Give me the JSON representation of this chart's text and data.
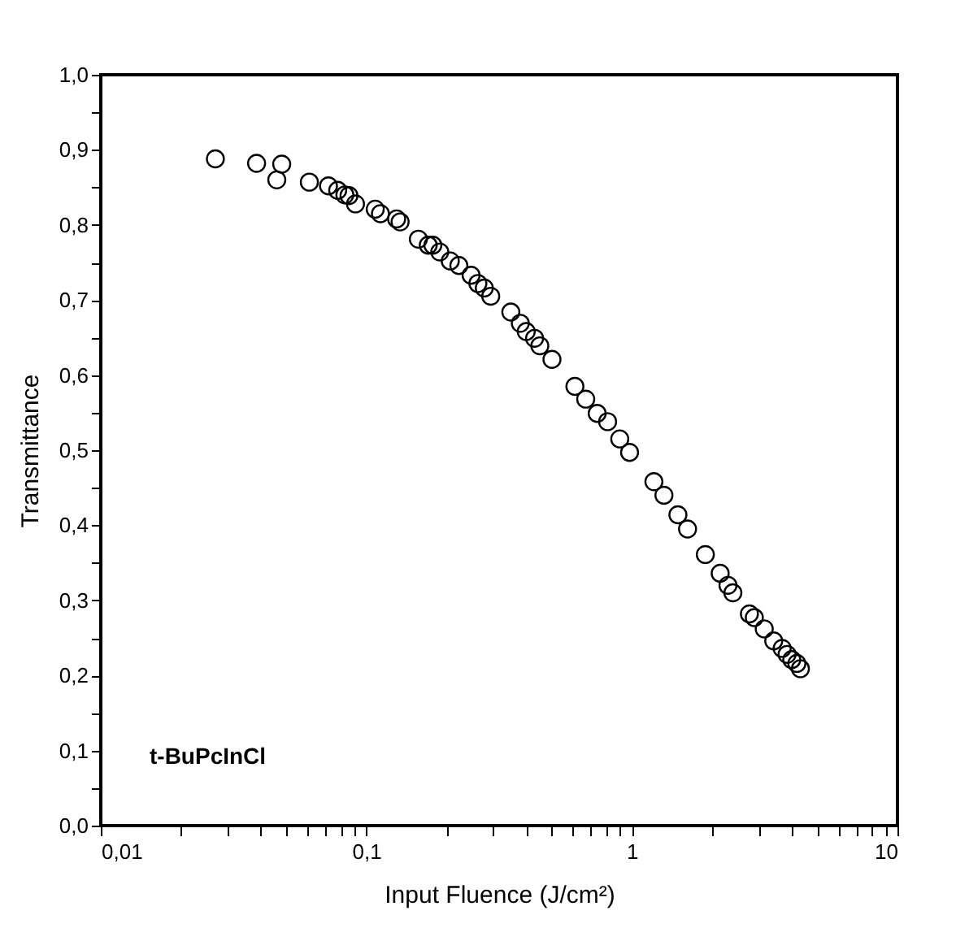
{
  "chart_data": {
    "type": "scatter",
    "xlabel": "Input Fluence (J/cm²)",
    "ylabel": "Transmittance",
    "log": "x",
    "marker": "circle",
    "grid": false,
    "legend": false,
    "annotations": [
      "t-BuPcInCl"
    ],
    "xlim": [
      0.01,
      10
    ],
    "ylim": [
      0,
      1
    ],
    "xticks": [
      {
        "value": 0.01,
        "label": "0,01"
      },
      {
        "value": 0.02,
        "label": null
      },
      {
        "value": 0.03,
        "label": null
      },
      {
        "value": 0.04,
        "label": null
      },
      {
        "value": 0.05,
        "label": null
      },
      {
        "value": 0.06,
        "label": null
      },
      {
        "value": 0.07,
        "label": null
      },
      {
        "value": 0.08,
        "label": null
      },
      {
        "value": 0.09,
        "label": null
      },
      {
        "value": 0.1,
        "label": "0,1"
      },
      {
        "value": 0.2,
        "label": null
      },
      {
        "value": 0.3,
        "label": null
      },
      {
        "value": 0.4,
        "label": null
      },
      {
        "value": 0.5,
        "label": null
      },
      {
        "value": 0.6,
        "label": null
      },
      {
        "value": 0.7,
        "label": null
      },
      {
        "value": 0.8,
        "label": null
      },
      {
        "value": 0.9,
        "label": null
      },
      1,
      {
        "value": 2,
        "label": null
      },
      {
        "value": 3,
        "label": null
      },
      {
        "value": 4,
        "label": null
      },
      {
        "value": 5,
        "label": null
      },
      {
        "value": 6,
        "label": null
      },
      {
        "value": 7,
        "label": null
      },
      {
        "value": 8,
        "label": null
      },
      {
        "value": 9,
        "label": null
      },
      10
    ],
    "yticks": [
      {
        "value": 0,
        "label": "0,0"
      },
      {
        "value": 0.05,
        "label": null
      },
      {
        "value": 0.1,
        "label": "0,1"
      },
      {
        "value": 0.15,
        "label": null
      },
      {
        "value": 0.2,
        "label": "0,2"
      },
      {
        "value": 0.25,
        "label": null
      },
      {
        "value": 0.3,
        "label": "0,3"
      },
      {
        "value": 0.35,
        "label": null
      },
      {
        "value": 0.4,
        "label": "0,4"
      },
      {
        "value": 0.45,
        "label": null
      },
      {
        "value": 0.5,
        "label": "0,5"
      },
      {
        "value": 0.55,
        "label": null
      },
      {
        "value": 0.6,
        "label": "0,6"
      },
      {
        "value": 0.65,
        "label": null
      },
      {
        "value": 0.7,
        "label": "0,7"
      },
      {
        "value": 0.75,
        "label": null
      },
      {
        "value": 0.8,
        "label": "0,8"
      },
      {
        "value": 0.85,
        "label": null
      },
      {
        "value": 0.9,
        "label": "0,9"
      },
      {
        "value": 0.95,
        "label": null
      },
      {
        "value": 1,
        "label": "1,0"
      }
    ],
    "series": [
      {
        "color": "#000000",
        "x": [
          0.027,
          0.0386,
          0.048,
          0.046,
          0.061,
          0.072,
          0.078,
          0.083,
          0.086,
          0.091,
          0.108,
          0.113,
          0.13,
          0.134,
          0.157,
          0.171,
          0.178,
          0.189,
          0.207,
          0.223,
          0.248,
          0.263,
          0.278,
          0.294,
          0.35,
          0.38,
          0.4,
          0.43,
          0.45,
          0.5,
          0.61,
          0.67,
          0.74,
          0.81,
          0.9,
          0.98,
          1.21,
          1.32,
          1.49,
          1.62,
          1.89,
          2.15,
          2.3,
          2.4,
          2.77,
          2.89,
          3.15,
          3.42,
          3.68,
          3.84,
          4.0,
          4.18,
          4.31
        ],
        "values": [
          0.888,
          0.882,
          0.881,
          0.86,
          0.857,
          0.852,
          0.846,
          0.84,
          0.839,
          0.828,
          0.821,
          0.815,
          0.808,
          0.804,
          0.781,
          0.773,
          0.773,
          0.764,
          0.752,
          0.746,
          0.733,
          0.722,
          0.716,
          0.705,
          0.684,
          0.669,
          0.658,
          0.649,
          0.639,
          0.621,
          0.585,
          0.568,
          0.549,
          0.538,
          0.515,
          0.497,
          0.458,
          0.44,
          0.414,
          0.395,
          0.361,
          0.336,
          0.32,
          0.31,
          0.282,
          0.277,
          0.262,
          0.246,
          0.236,
          0.228,
          0.221,
          0.216,
          0.209
        ]
      }
    ]
  }
}
